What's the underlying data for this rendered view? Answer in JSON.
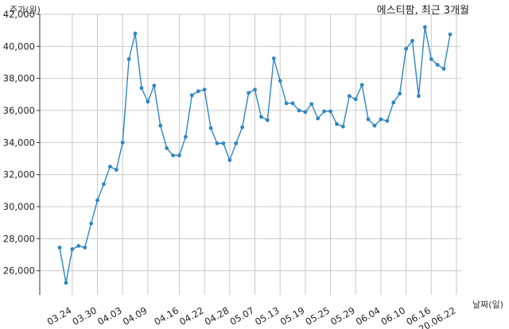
{
  "chart_data": {
    "type": "line",
    "title": "에스티팜, 최근 3개월",
    "ylabel": "주가(원)",
    "xlabel": "날짜(일)",
    "ylim": [
      24500,
      42000
    ],
    "grid": true,
    "y_ticks": [
      26000,
      28000,
      30000,
      32000,
      34000,
      36000,
      38000,
      40000,
      42000
    ],
    "y_tick_labels": [
      "26,000",
      "28,000",
      "30,000",
      "32,000",
      "34,000",
      "36,000",
      "38,000",
      "40,000",
      "42,000"
    ],
    "x_tick_labels": [
      "03.24",
      "03.30",
      "04.03",
      "04.09",
      "04.16",
      "04.22",
      "04.28",
      "05.07",
      "05.13",
      "05.19",
      "05.25",
      "05.29",
      "06.04",
      "06.10",
      "06.16",
      "20.06.22"
    ],
    "x_tick_positions": [
      2,
      6,
      10,
      14,
      19,
      23,
      27,
      31,
      35,
      39,
      43,
      47,
      51,
      55,
      59,
      63
    ],
    "series": [
      {
        "color": "#2e86c1",
        "values": [
          27450,
          25250,
          27350,
          27550,
          27450,
          28950,
          30400,
          31400,
          32500,
          32300,
          34000,
          39200,
          40800,
          37400,
          36550,
          37550,
          35050,
          33650,
          33200,
          33200,
          34350,
          36950,
          37200,
          37300,
          34900,
          33950,
          33950,
          32900,
          33950,
          34950,
          37100,
          37300,
          35600,
          35400,
          39250,
          37850,
          36450,
          36450,
          36000,
          35900,
          36400,
          35500,
          35950,
          35950,
          35150,
          35000,
          36900,
          36700,
          37600,
          35450,
          35050,
          35450,
          35350,
          36500,
          37050,
          39850,
          40350,
          36900,
          41200,
          39200,
          38850,
          38600,
          40750
        ]
      }
    ]
  }
}
